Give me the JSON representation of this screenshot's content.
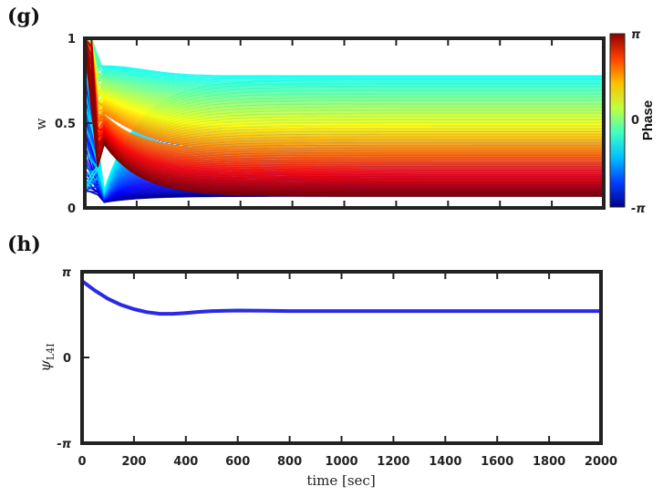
{
  "panels": {
    "g": {
      "label": "(g)",
      "chart_data": {
        "type": "line",
        "ylabel": "w",
        "xlim": [
          0,
          2000
        ],
        "ylim": [
          0,
          1
        ],
        "yticks": [
          {
            "value": 0,
            "label": "0"
          },
          {
            "value": 0.5,
            "label": "0.5"
          },
          {
            "value": 1,
            "label": "1"
          }
        ],
        "description_series": "family of trajectories colored by phase from -pi (blue) to pi (red); steady values spread from about 0.07 (red) to 0.78 (cyan)",
        "steady_range": [
          0.07,
          0.78
        ],
        "colorbar": {
          "label": "Phase",
          "ticks": [
            {
              "value": 1,
              "label": "π"
            },
            {
              "value": 0,
              "label": "0"
            },
            {
              "value": -1,
              "label": "-π"
            }
          ],
          "colors": [
            "#00008f",
            "#0040ff",
            "#00c0ff",
            "#40ffc0",
            "#c0ff40",
            "#ffc000",
            "#ff4000",
            "#8f0000"
          ]
        },
        "grid": false
      }
    },
    "h": {
      "label": "(h)",
      "chart_data": {
        "type": "line",
        "xlabel": "time [sec]",
        "ylabel": "ψ_L4I",
        "ylabel_main": "ψ",
        "ylabel_sub": "L4I",
        "xlim": [
          0,
          2000
        ],
        "ylim": [
          -3.1416,
          3.1416
        ],
        "xticks": [
          0,
          200,
          400,
          600,
          800,
          1000,
          1200,
          1400,
          1600,
          1800,
          2000
        ],
        "yticks": [
          {
            "value": 3.1416,
            "label": "π"
          },
          {
            "value": 0,
            "label": "0"
          },
          {
            "value": -3.1416,
            "label": "-π"
          }
        ],
        "series": [
          {
            "color": "#2a2ae6",
            "x": [
              0,
              50,
              100,
              150,
              200,
              250,
              300,
              350,
              400,
              450,
              500,
              600,
              700,
              800,
              1000,
              1200,
              1400,
              1600,
              1800,
              2000
            ],
            "y": [
              2.8,
              2.45,
              2.15,
              1.93,
              1.77,
              1.66,
              1.6,
              1.6,
              1.63,
              1.67,
              1.7,
              1.72,
              1.71,
              1.7,
              1.7,
              1.7,
              1.7,
              1.7,
              1.7,
              1.7
            ]
          }
        ],
        "grid": false
      }
    }
  }
}
